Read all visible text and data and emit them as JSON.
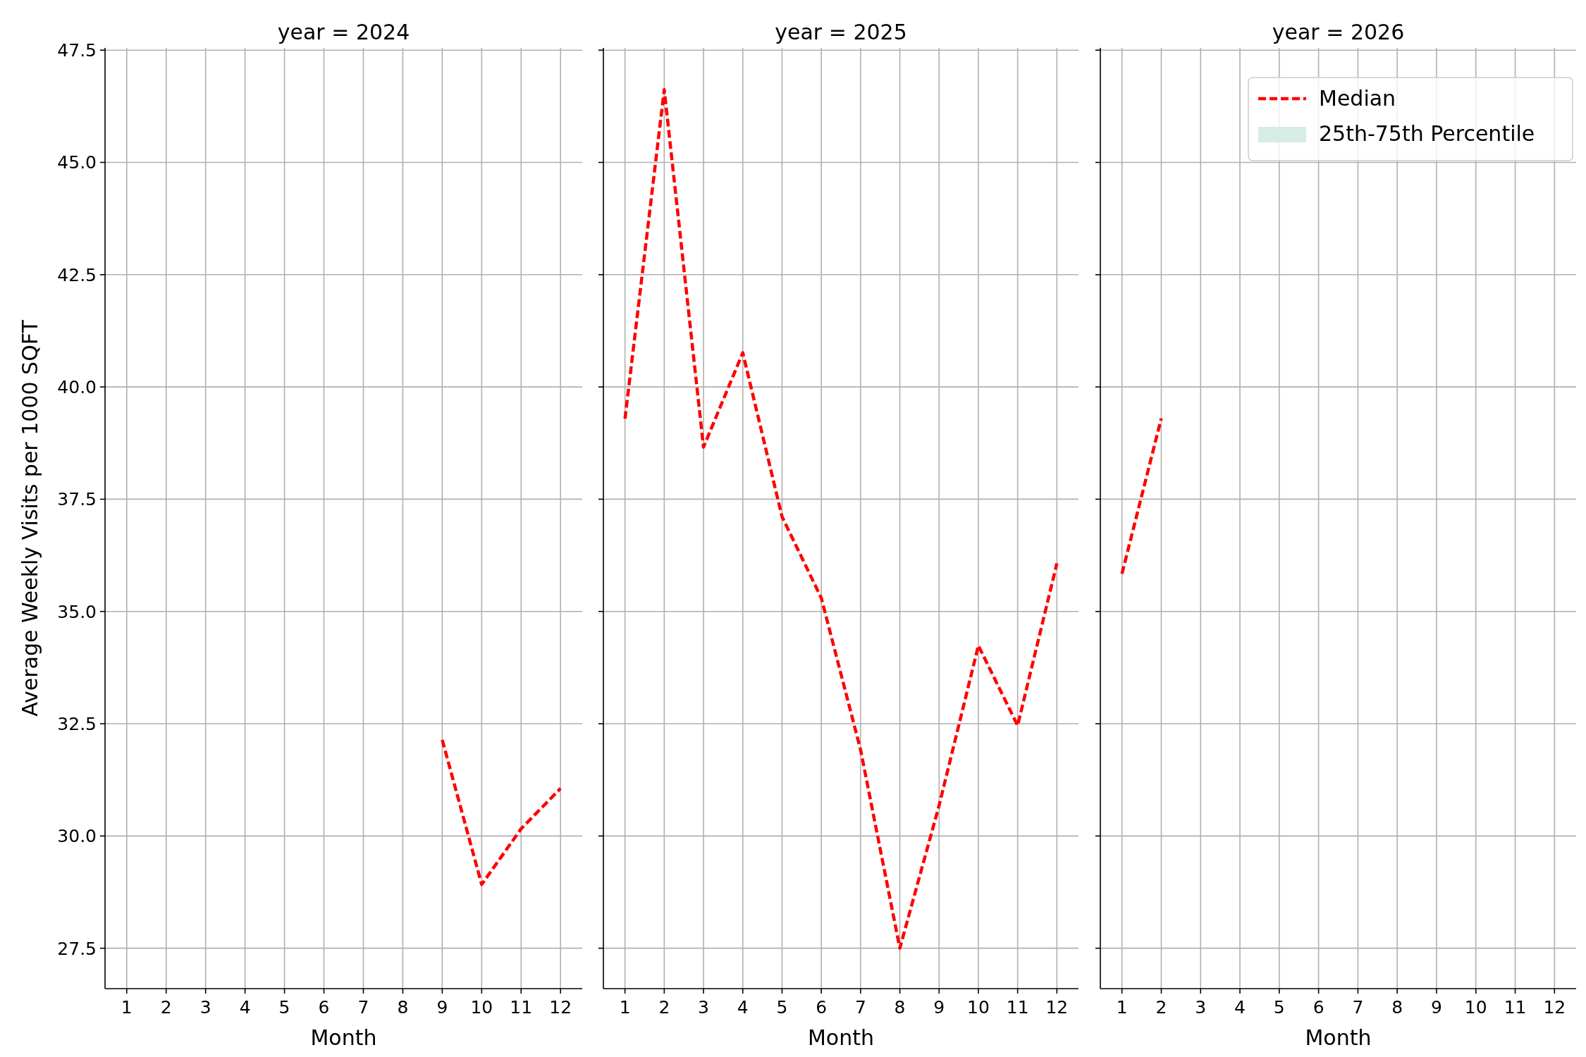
{
  "chart_data": [
    {
      "type": "line",
      "title": "year = 2024",
      "xlabel": "Month",
      "ylabel": "Average Weekly Visits per 1000 SQFT",
      "xlim": [
        0.45,
        12.55
      ],
      "xticks": [
        1,
        2,
        3,
        4,
        5,
        6,
        7,
        8,
        9,
        10,
        11,
        12
      ],
      "ylim": [
        26.6,
        47.55
      ],
      "yticks": [
        27.5,
        {
          "value": 30,
          "label": "30.0"
        },
        32.5,
        {
          "value": 35,
          "label": "35.0"
        },
        37.5,
        {
          "value": 40,
          "label": "40.0"
        },
        42.5,
        {
          "value": 45,
          "label": "45.0"
        },
        47.5
      ],
      "grid": true,
      "line_style": "dashed",
      "marker": "none",
      "series": [
        {
          "color": "#ff0000",
          "x": [
            9,
            10,
            11,
            12
          ],
          "values": [
            32.14,
            28.92,
            30.16,
            31.06
          ]
        }
      ]
    },
    {
      "type": "line",
      "title": "year = 2025",
      "xlabel": "Month",
      "xlim": [
        0.45,
        12.55
      ],
      "xticks": [
        1,
        2,
        3,
        4,
        5,
        6,
        7,
        8,
        9,
        10,
        11,
        12
      ],
      "ylim": [
        26.6,
        47.55
      ],
      "yticks": [
        27.5,
        30,
        32.5,
        35,
        37.5,
        40,
        42.5,
        45,
        47.5
      ],
      "tick_labels": "x",
      "grid": true,
      "line_style": "dashed",
      "marker": "none",
      "series": [
        {
          "color": "#ff0000",
          "x": [
            1,
            2,
            3,
            4,
            5,
            6,
            7,
            8,
            9,
            10,
            11,
            12
          ],
          "values": [
            39.29,
            46.62,
            38.66,
            40.76,
            37.11,
            35.3,
            31.92,
            27.5,
            30.68,
            34.24,
            32.46,
            36.07
          ]
        }
      ]
    },
    {
      "type": "line",
      "title": "year = 2026",
      "xlabel": "Month",
      "xlim": [
        0.45,
        12.55
      ],
      "xticks": [
        1,
        2,
        3,
        4,
        5,
        6,
        7,
        8,
        9,
        10,
        11,
        12
      ],
      "ylim": [
        26.6,
        47.55
      ],
      "yticks": [
        27.5,
        30,
        32.5,
        35,
        37.5,
        40,
        42.5,
        45,
        47.5
      ],
      "tick_labels": "x",
      "grid": true,
      "line_style": "dashed",
      "marker": "none",
      "legend": "top right",
      "series": [
        {
          "name": "Median",
          "color": "#ff0000",
          "x": [
            1,
            2
          ],
          "values": [
            35.84,
            39.3
          ]
        },
        {
          "name": "25th-75th Percentile",
          "type": "area",
          "color": "#d6ece6"
        }
      ]
    }
  ]
}
